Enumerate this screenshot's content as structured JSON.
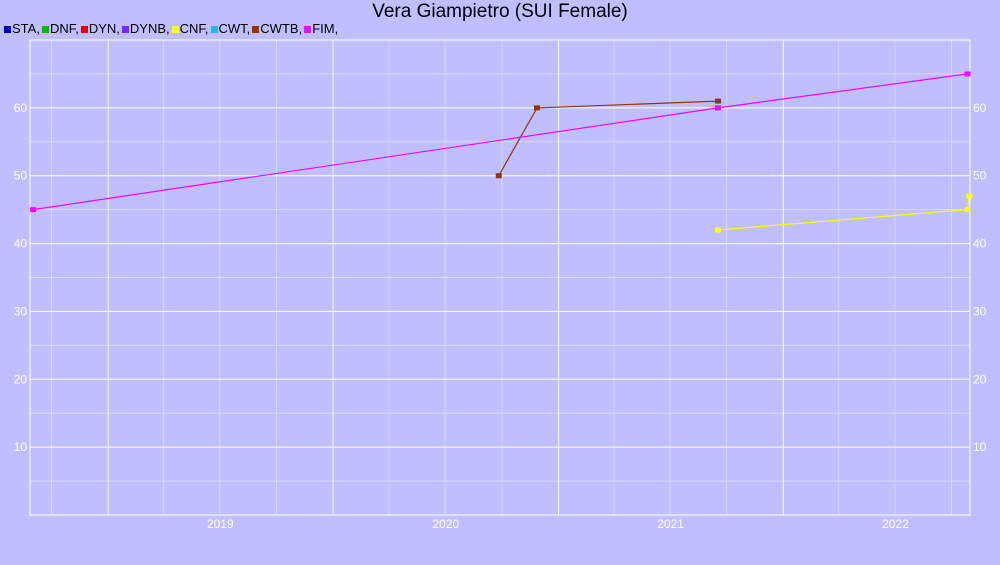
{
  "title": "Vera Giampietro (SUI Female)",
  "colors": {
    "background": "#bfbfff",
    "grid": "#ffffff",
    "minor_grid": "#d8d8ff",
    "tick_text": "#ffffff"
  },
  "legend": [
    {
      "label": "STA,",
      "color": "#0000cc"
    },
    {
      "label": "DNF,",
      "color": "#00bb00"
    },
    {
      "label": "DYN,",
      "color": "#ee0000"
    },
    {
      "label": "DYNB,",
      "color": "#7f22ff"
    },
    {
      "label": "CNF,",
      "color": "#ffff00"
    },
    {
      "label": "CWT,",
      "color": "#22bbdd"
    },
    {
      "label": "CWTB,",
      "color": "#993300"
    },
    {
      "label": "FIM,",
      "color": "#ff00ff"
    }
  ],
  "chart_data": {
    "type": "line",
    "title": "Vera Giampietro (SUI Female)",
    "xlabel": "",
    "ylabel": "",
    "x_ticks": [
      "2019",
      "2020",
      "2021",
      "2022"
    ],
    "y_ticks": [
      10,
      20,
      30,
      40,
      50,
      60
    ],
    "xlim": [
      "2018-08-27",
      "2022-10-31"
    ],
    "ylim": [
      0,
      70
    ],
    "grid": true,
    "legend_position": "top-left",
    "series": [
      {
        "name": "CNF",
        "color": "#ffff00",
        "points": [
          [
            "2021-09-17",
            42
          ],
          [
            "2022-10-27",
            45
          ],
          [
            "2022-10-30",
            47
          ]
        ]
      },
      {
        "name": "CWTB",
        "color": "#993300",
        "points": [
          [
            "2020-09-26",
            50
          ],
          [
            "2020-11-27",
            60
          ],
          [
            "2021-09-17",
            61
          ]
        ]
      },
      {
        "name": "FIM",
        "color": "#ff00ff",
        "points": [
          [
            "2018-09-01",
            45
          ],
          [
            "2021-09-17",
            60
          ],
          [
            "2022-10-27",
            65
          ]
        ]
      }
    ]
  }
}
